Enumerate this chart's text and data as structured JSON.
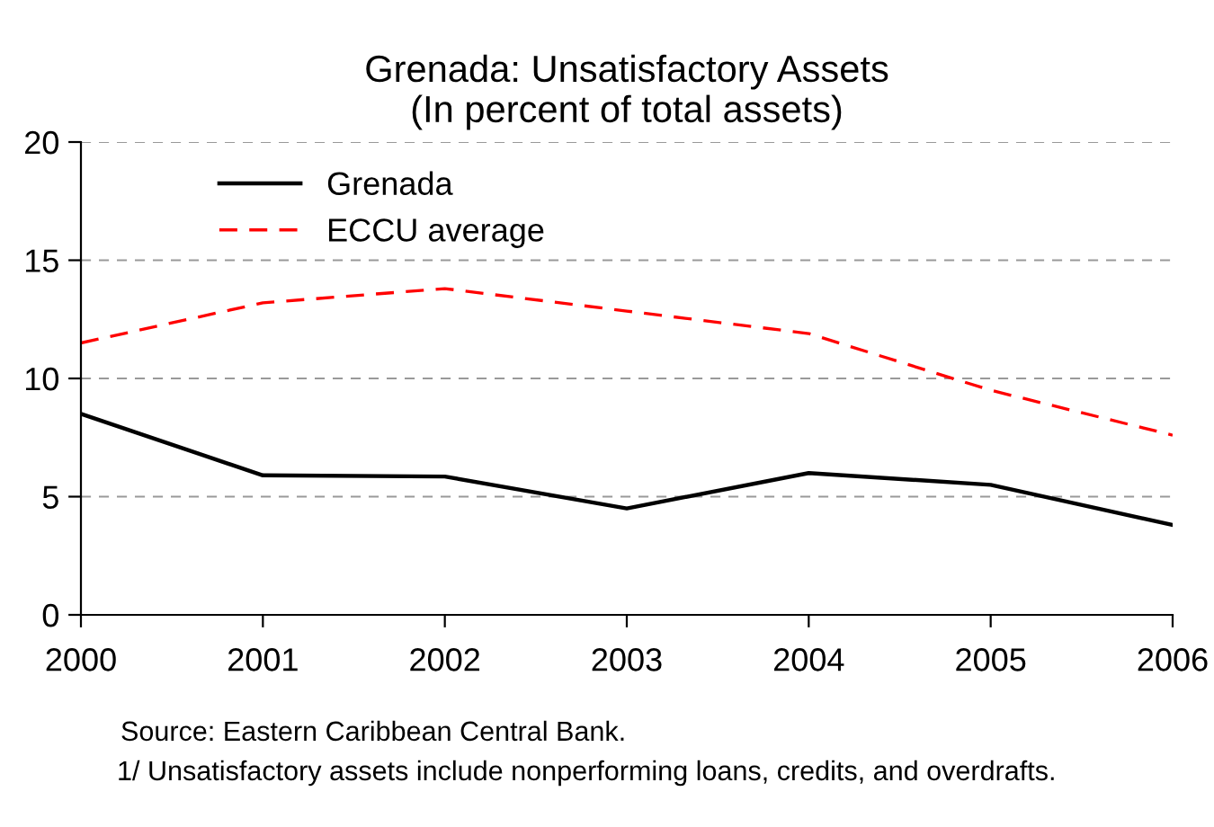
{
  "chart_data": {
    "type": "line",
    "title": "Grenada: Unsatisfactory Assets\n(In percent of total assets)",
    "x": [
      2000,
      2001,
      2002,
      2003,
      2004,
      2005,
      2006
    ],
    "series": [
      {
        "name": "Grenada",
        "color": "#000000",
        "line_style": "solid",
        "values": [
          8.5,
          5.9,
          5.85,
          4.5,
          6.0,
          5.5,
          3.8
        ]
      },
      {
        "name": "ECCU average",
        "color": "#ff0000",
        "line_style": "dashed",
        "values": [
          11.5,
          13.2,
          13.8,
          12.85,
          11.9,
          9.5,
          7.6
        ]
      }
    ],
    "xlim": [
      2000,
      2006
    ],
    "xticks": [
      2000,
      2001,
      2002,
      2003,
      2004,
      2005,
      2006
    ],
    "ylim": [
      0,
      20
    ],
    "yticks": [
      0,
      5,
      10,
      15,
      20
    ],
    "grid": "y",
    "legend": "top left",
    "marker": "none",
    "annotations": [
      "Source: Eastern Caribbean Central Bank.",
      "1/ Unsatisfactory assets include nonperforming loans, credits, and overdrafts."
    ]
  }
}
